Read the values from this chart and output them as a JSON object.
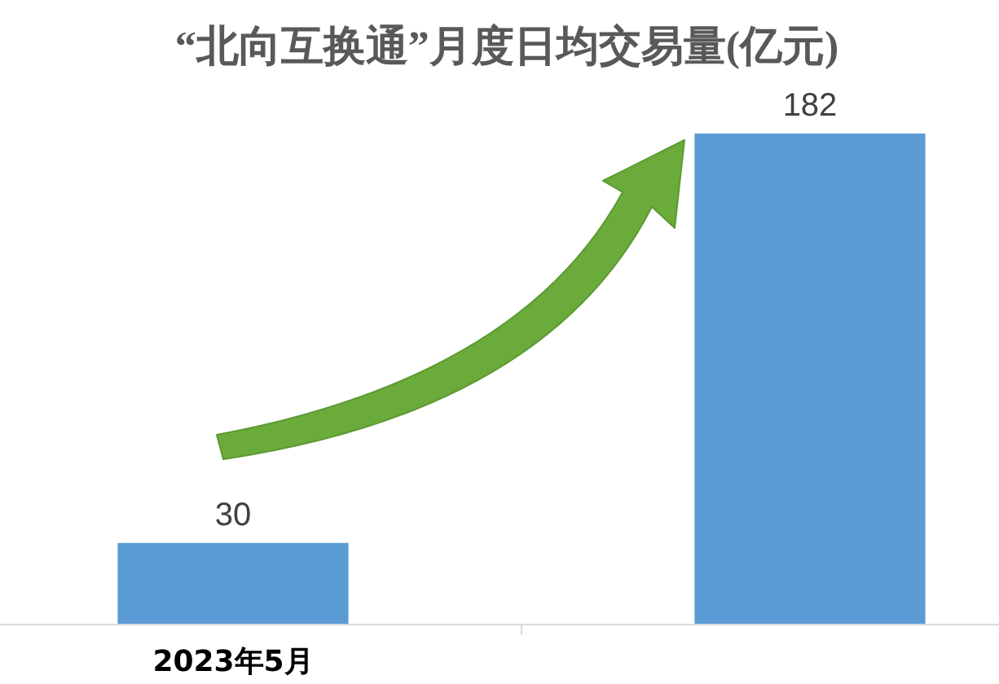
{
  "chart_data": {
    "type": "bar",
    "title": "“北向互换通”月度日均交易量(亿元)",
    "categories": [
      "2023年5月",
      null
    ],
    "values": [
      30,
      182
    ],
    "color": "#5b9bd5",
    "data_labels": true
  }
}
